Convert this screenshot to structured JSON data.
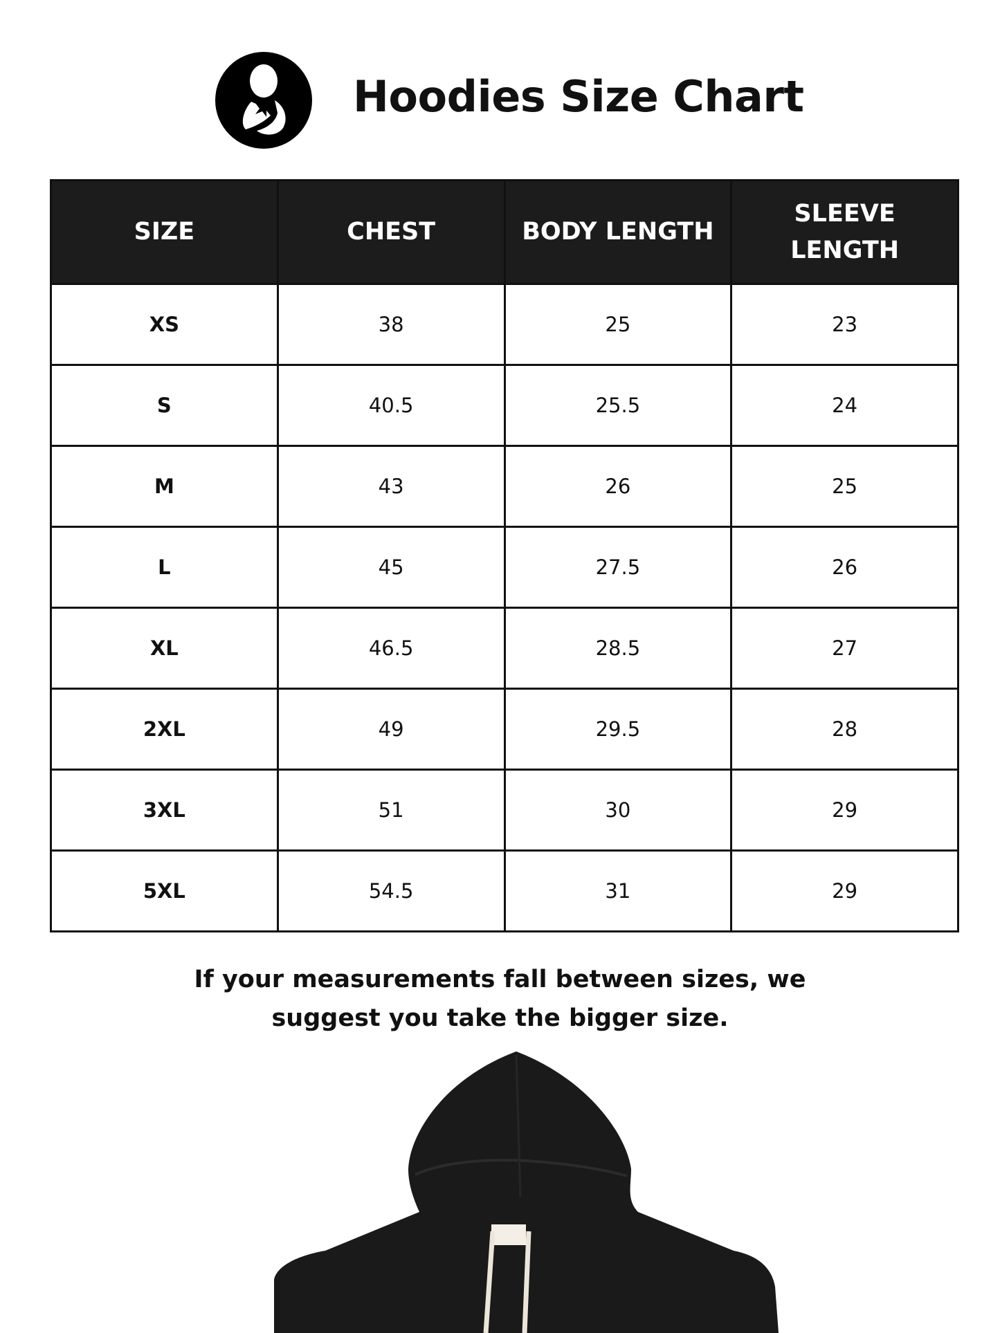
{
  "header": {
    "title": "Hoodies Size Chart",
    "logo_icon": "mother-and-child-icon"
  },
  "table": {
    "columns": [
      "SIZE",
      "CHEST",
      "BODY LENGTH",
      "SLEEVE LENGTH"
    ],
    "rows": [
      {
        "size": "XS",
        "chest": "38",
        "body_length": "25",
        "sleeve_length": "23"
      },
      {
        "size": "S",
        "chest": "40.5",
        "body_length": "25.5",
        "sleeve_length": "24"
      },
      {
        "size": "M",
        "chest": "43",
        "body_length": "26",
        "sleeve_length": "25"
      },
      {
        "size": "L",
        "chest": "45",
        "body_length": "27.5",
        "sleeve_length": "26"
      },
      {
        "size": "XL",
        "chest": "46.5",
        "body_length": "28.5",
        "sleeve_length": "27"
      },
      {
        "size": "2XL",
        "chest": "49",
        "body_length": "29.5",
        "sleeve_length": "28"
      },
      {
        "size": "3XL",
        "chest": "51",
        "body_length": "30",
        "sleeve_length": "29"
      },
      {
        "size": "5XL",
        "chest": "54.5",
        "body_length": "31",
        "sleeve_length": "29"
      }
    ]
  },
  "note": {
    "line1": "If your measurements fall between sizes, we",
    "line2": "suggest you take the bigger size."
  },
  "colors": {
    "header_bg": "#1c1c1c",
    "header_text": "#ffffff",
    "hoodie": "#1a1a1a",
    "drawstring": "#ece6da"
  }
}
